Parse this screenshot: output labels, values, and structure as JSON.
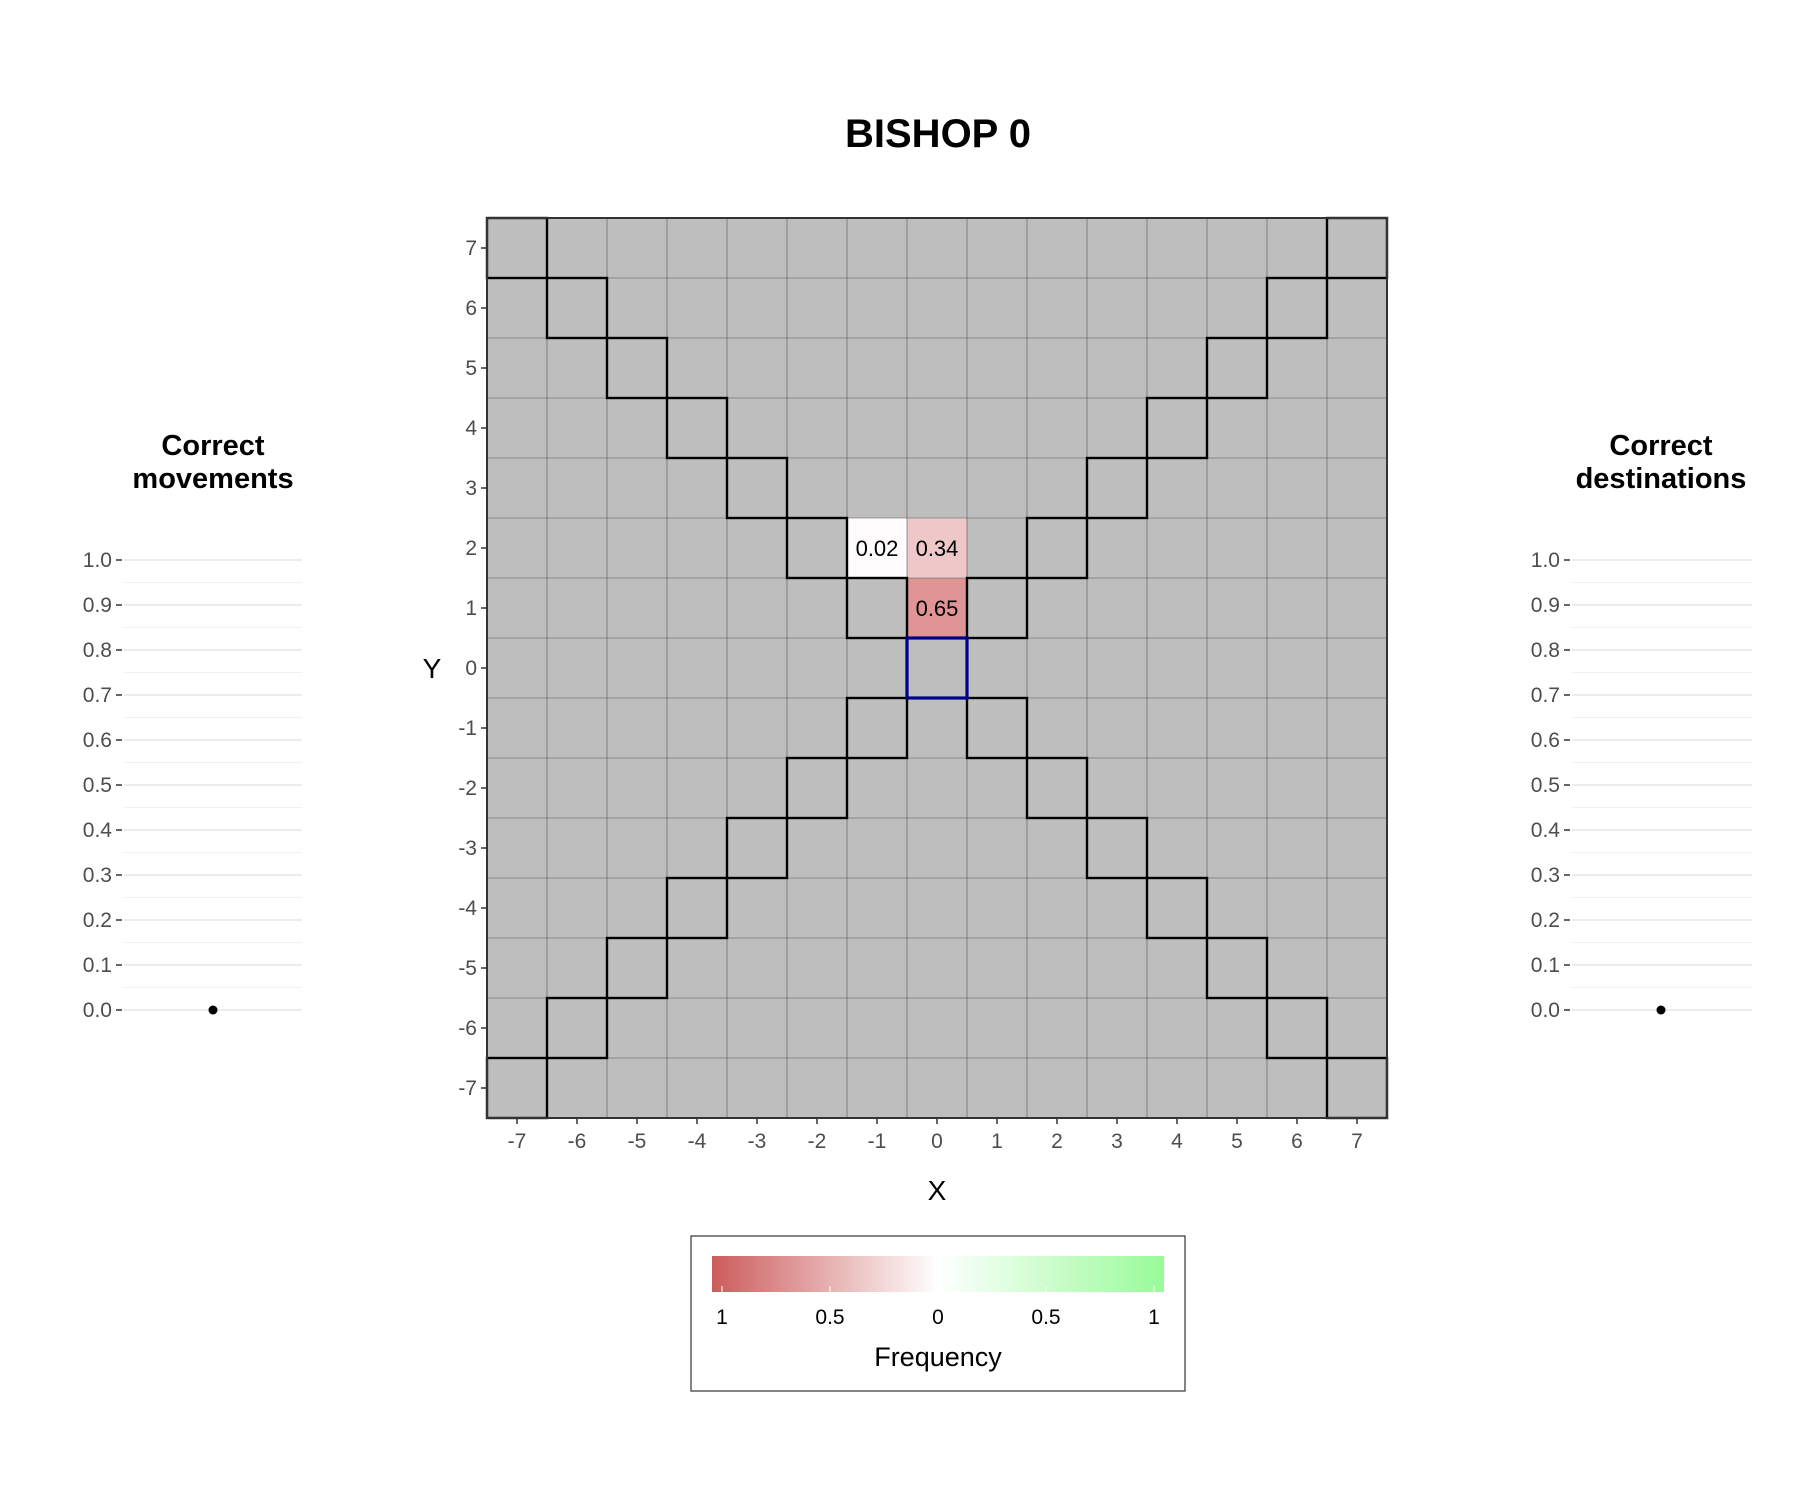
{
  "chart_data": [
    {
      "type": "heatmap",
      "title": "BISHOP 0",
      "xlabel": "X",
      "ylabel": "Y",
      "x": [
        -7,
        -6,
        -5,
        -4,
        -3,
        -2,
        -1,
        0,
        1,
        2,
        3,
        4,
        5,
        6,
        7
      ],
      "y": [
        -7,
        -6,
        -5,
        -4,
        -3,
        -2,
        -1,
        0,
        1,
        2,
        3,
        4,
        5,
        6,
        7
      ],
      "x_tick_labels": [
        "-7",
        "-6",
        "-5",
        "-4",
        "-3",
        "-2",
        "-1",
        "0",
        "1",
        "2",
        "3",
        "4",
        "5",
        "6",
        "7"
      ],
      "y_tick_labels": [
        "-7",
        "-6",
        "-5",
        "-4",
        "-3",
        "-2",
        "-1",
        "0",
        "1",
        "2",
        "3",
        "4",
        "5",
        "6",
        "7"
      ],
      "background_color": "#bebebe",
      "cells": [
        {
          "x": -1,
          "y": 2,
          "value": -0.02,
          "label": "0.02"
        },
        {
          "x": 0,
          "y": 2,
          "value": -0.34,
          "label": "0.34"
        },
        {
          "x": 0,
          "y": 1,
          "value": -0.65,
          "label": "0.65"
        }
      ],
      "origin": {
        "x": 0,
        "y": 0,
        "color": "#00008b"
      },
      "legal_moves_outline": "diagonals",
      "legend": {
        "title": "Frequency",
        "placement": "bottom",
        "range": [
          -1,
          1
        ],
        "tick_values": [
          -1,
          -0.5,
          0,
          0.5,
          1
        ],
        "tick_labels": [
          "1",
          "0.5",
          "0",
          "0.5",
          "1"
        ],
        "colors": {
          "negative": "#cd5c5c",
          "zero": "#ffffff",
          "positive": "#98fb98"
        }
      }
    },
    {
      "type": "scatter",
      "title": "Correct\nmovements",
      "ylim": [
        0,
        1
      ],
      "y_tick_labels": [
        "1.0",
        "0.9",
        "0.8",
        "0.7",
        "0.6",
        "0.5",
        "0.4",
        "0.3",
        "0.2",
        "0.1",
        "0.0"
      ],
      "y_ticks": [
        1.0,
        0.9,
        0.8,
        0.7,
        0.6,
        0.5,
        0.4,
        0.3,
        0.2,
        0.1,
        0.0
      ],
      "points": [
        {
          "y": 0.0
        }
      ]
    },
    {
      "type": "scatter",
      "title": "Correct\ndestinations",
      "ylim": [
        0,
        1
      ],
      "y_tick_labels": [
        "1.0",
        "0.9",
        "0.8",
        "0.7",
        "0.6",
        "0.5",
        "0.4",
        "0.3",
        "0.2",
        "0.1",
        "0.0"
      ],
      "y_ticks": [
        1.0,
        0.9,
        0.8,
        0.7,
        0.6,
        0.5,
        0.4,
        0.3,
        0.2,
        0.1,
        0.0
      ],
      "points": [
        {
          "y": 0.0
        }
      ]
    }
  ]
}
